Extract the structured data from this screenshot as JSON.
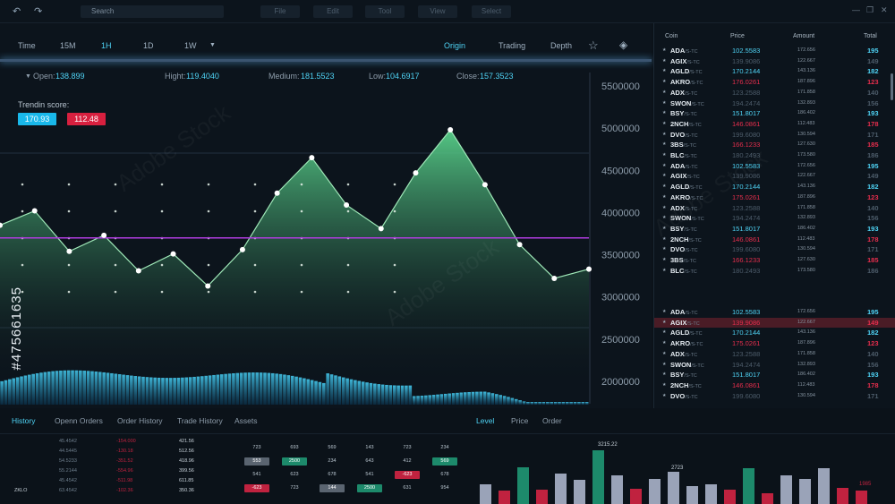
{
  "topbar": {
    "search_placeholder": "Search",
    "menu": [
      "File",
      "Edit",
      "Tool",
      "View",
      "Select"
    ],
    "window_controls": [
      "—",
      "❐",
      "✕"
    ]
  },
  "timeframes": {
    "label": "Time",
    "options": [
      "15M",
      "1H",
      "1D",
      "1W"
    ],
    "active": "1H"
  },
  "view_tabs": [
    "Origin",
    "Trading",
    "Depth"
  ],
  "stats": {
    "open_label": "Open:",
    "open": "138.899",
    "high_label": "Hight:",
    "high": "119.4040",
    "medium_label": "Medium:",
    "medium": "181.5523",
    "low_label": "Low:",
    "low": "104.6917",
    "close_label": "Close:",
    "close": "157.3523"
  },
  "trend": {
    "label": "Trendin score:",
    "up": "170.93",
    "down": "112.48"
  },
  "chart_data": {
    "type": "area",
    "yticks": [
      "5500000",
      "5000000",
      "4500000",
      "4000000",
      "3500000",
      "3000000",
      "2500000",
      "2000000"
    ],
    "ylim": [
      2000000,
      5500000
    ],
    "points": [
      3850000,
      4020000,
      3540000,
      3730000,
      3310000,
      3510000,
      3130000,
      3560000,
      4230000,
      4650000,
      4090000,
      3810000,
      4470000,
      4980000,
      4330000,
      3620000,
      3220000,
      3330000
    ],
    "reference_line": 3700000,
    "colors": {
      "line": "#9fe8b8",
      "fill": "#3fae72",
      "ref": "#b03ce0",
      "volume": "#3fc5f0"
    }
  },
  "right_panel": {
    "headers": [
      "Coin",
      "Price",
      "Amount",
      "Total"
    ],
    "rows": [
      {
        "coin": "ADA",
        "pair": "/S-TC",
        "price": "102.5583",
        "amount": "172.656",
        "total": "195",
        "c": "blue"
      },
      {
        "coin": "AGIX",
        "pair": "/S-TC",
        "price": "139.9086",
        "amount": "122.667",
        "total": "149",
        "c": "gray"
      },
      {
        "coin": "AGLD",
        "pair": "/S-TC",
        "price": "170.2144",
        "amount": "143.136",
        "total": "182",
        "c": "blue"
      },
      {
        "coin": "AKRO",
        "pair": "/S-TC",
        "price": "176.0261",
        "amount": "187.896",
        "total": "123",
        "c": "red"
      },
      {
        "coin": "ADX",
        "pair": "/S-TC",
        "price": "123.2588",
        "amount": "171.858",
        "total": "140",
        "c": "gray"
      },
      {
        "coin": "SWON",
        "pair": "/S-TC",
        "price": "194.2474",
        "amount": "132.893",
        "total": "156",
        "c": "gray"
      },
      {
        "coin": "BSY",
        "pair": "/S-TC",
        "price": "151.8017",
        "amount": "186.402",
        "total": "193",
        "c": "blue"
      },
      {
        "coin": "2NCH",
        "pair": "/S-TC",
        "price": "146.0861",
        "amount": "112.483",
        "total": "178",
        "c": "red"
      },
      {
        "coin": "DVO",
        "pair": "/S-TC",
        "price": "199.6080",
        "amount": "130.594",
        "total": "171",
        "c": "gray"
      },
      {
        "coin": "3BS",
        "pair": "/S-TC",
        "price": "166.1233",
        "amount": "127.630",
        "total": "185",
        "c": "red"
      },
      {
        "coin": "BLC",
        "pair": "/S-TC",
        "price": "180.2493",
        "amount": "173.580",
        "total": "186",
        "c": "gray"
      },
      {
        "coin": "ADA",
        "pair": "/S-TC",
        "price": "102.5583",
        "amount": "172.656",
        "total": "195",
        "c": "blue"
      },
      {
        "coin": "AGIX",
        "pair": "/S-TC",
        "price": "139.9086",
        "amount": "122.667",
        "total": "149",
        "c": "gray"
      },
      {
        "coin": "AGLD",
        "pair": "/S-TC",
        "price": "170.2144",
        "amount": "143.136",
        "total": "182",
        "c": "blue"
      },
      {
        "coin": "AKRO",
        "pair": "/S-TC",
        "price": "175.0261",
        "amount": "187.896",
        "total": "123",
        "c": "red"
      },
      {
        "coin": "ADX",
        "pair": "/S-TC",
        "price": "123.2588",
        "amount": "171.858",
        "total": "140",
        "c": "gray"
      },
      {
        "coin": "SWON",
        "pair": "/S-TC",
        "price": "194.2474",
        "amount": "132.893",
        "total": "156",
        "c": "gray"
      },
      {
        "coin": "BSY",
        "pair": "/S-TC",
        "price": "151.8017",
        "amount": "186.402",
        "total": "193",
        "c": "blue"
      },
      {
        "coin": "2NCH",
        "pair": "/S-TC",
        "price": "146.0861",
        "amount": "112.483",
        "total": "178",
        "c": "red"
      },
      {
        "coin": "DVO",
        "pair": "/S-TC",
        "price": "199.6080",
        "amount": "130.594",
        "total": "171",
        "c": "gray"
      },
      {
        "coin": "3BS",
        "pair": "/S-TC",
        "price": "166.1233",
        "amount": "127.630",
        "total": "185",
        "c": "red"
      },
      {
        "coin": "BLC",
        "pair": "/S-TC",
        "price": "180.2493",
        "amount": "173.580",
        "total": "186",
        "c": "gray"
      }
    ],
    "rows2": [
      {
        "coin": "ADA",
        "pair": "/S-TC",
        "price": "102.5583",
        "amount": "172.656",
        "total": "195",
        "c": "blue"
      },
      {
        "coin": "AGIX",
        "pair": "/S-TC",
        "price": "139.9086",
        "amount": "122.667",
        "total": "149",
        "c": "red",
        "hl": true
      },
      {
        "coin": "AGLD",
        "pair": "/S-TC",
        "price": "170.2144",
        "amount": "143.136",
        "total": "182",
        "c": "blue"
      },
      {
        "coin": "AKRO",
        "pair": "/S-TC",
        "price": "175.0261",
        "amount": "187.896",
        "total": "123",
        "c": "red"
      },
      {
        "coin": "ADX",
        "pair": "/S-TC",
        "price": "123.2588",
        "amount": "171.858",
        "total": "140",
        "c": "gray"
      },
      {
        "coin": "SWON",
        "pair": "/S-TC",
        "price": "194.2474",
        "amount": "132.893",
        "total": "156",
        "c": "gray"
      },
      {
        "coin": "BSY",
        "pair": "/S-TC",
        "price": "151.8017",
        "amount": "186.402",
        "total": "193",
        "c": "blue"
      },
      {
        "coin": "2NCH",
        "pair": "/S-TC",
        "price": "146.0861",
        "amount": "112.483",
        "total": "178",
        "c": "red"
      },
      {
        "coin": "DVO",
        "pair": "/S-TC",
        "price": "199.6080",
        "amount": "130.594",
        "total": "171",
        "c": "gray"
      }
    ]
  },
  "bottom": {
    "tabs": [
      "History",
      "Openn Orders",
      "Order History",
      "Trade History",
      "Assets"
    ],
    "tabs2": [
      "Level",
      "Price",
      "Order"
    ],
    "history_rows": [
      {
        "a": "",
        "b": "45.4542",
        "c": "-154.000",
        "d": "421.56"
      },
      {
        "a": "",
        "b": "44.5445",
        "c": "-130.18",
        "d": "512.56"
      },
      {
        "a": "",
        "b": "54.5233",
        "c": "-351.52",
        "d": "418.96"
      },
      {
        "a": "",
        "b": "55.2144",
        "c": "-554.96",
        "d": "399.56"
      },
      {
        "a": "",
        "b": "45.4542",
        "c": "-511.98",
        "d": "611.85"
      },
      {
        "a": "ZKLO",
        "b": "63.4542",
        "c": "-102.36",
        "d": "350.36"
      }
    ],
    "mid_grid": [
      [
        "723",
        "693",
        "569",
        "143",
        "723",
        "234"
      ],
      [
        "553",
        "2500",
        "234",
        "643",
        "412",
        "569"
      ],
      [
        "541",
        "623",
        "678",
        "541",
        "-623",
        "678"
      ],
      [
        "-623",
        "723",
        "144",
        "2500",
        "631",
        "954"
      ]
    ],
    "bar_labels": [
      "3215.22",
      "2723",
      "1985"
    ],
    "bars": [
      {
        "v": 22,
        "c": "#9aa3b8"
      },
      {
        "v": 15,
        "c": "#c0223f"
      },
      {
        "v": 41,
        "c": "#1d8a6b"
      },
      {
        "v": 16,
        "c": "#c0223f"
      },
      {
        "v": 34,
        "c": "#9aa3b8"
      },
      {
        "v": 27,
        "c": "#9aa3b8"
      },
      {
        "v": 60,
        "c": "#1d8a6b"
      },
      {
        "v": 32,
        "c": "#9aa3b8"
      },
      {
        "v": 17,
        "c": "#c0223f"
      },
      {
        "v": 28,
        "c": "#9aa3b8"
      },
      {
        "v": 36,
        "c": "#9aa3b8"
      },
      {
        "v": 20,
        "c": "#9aa3b8"
      },
      {
        "v": 22,
        "c": "#9aa3b8"
      },
      {
        "v": 16,
        "c": "#c0223f"
      },
      {
        "v": 40,
        "c": "#1d8a6b"
      },
      {
        "v": 12,
        "c": "#c0223f"
      },
      {
        "v": 32,
        "c": "#9aa3b8"
      },
      {
        "v": 28,
        "c": "#9aa3b8"
      },
      {
        "v": 40,
        "c": "#9aa3b8"
      },
      {
        "v": 18,
        "c": "#c0223f"
      },
      {
        "v": 15,
        "c": "#c0223f"
      }
    ]
  },
  "side_id": "#475661635",
  "watermark": "Adobe Stock"
}
